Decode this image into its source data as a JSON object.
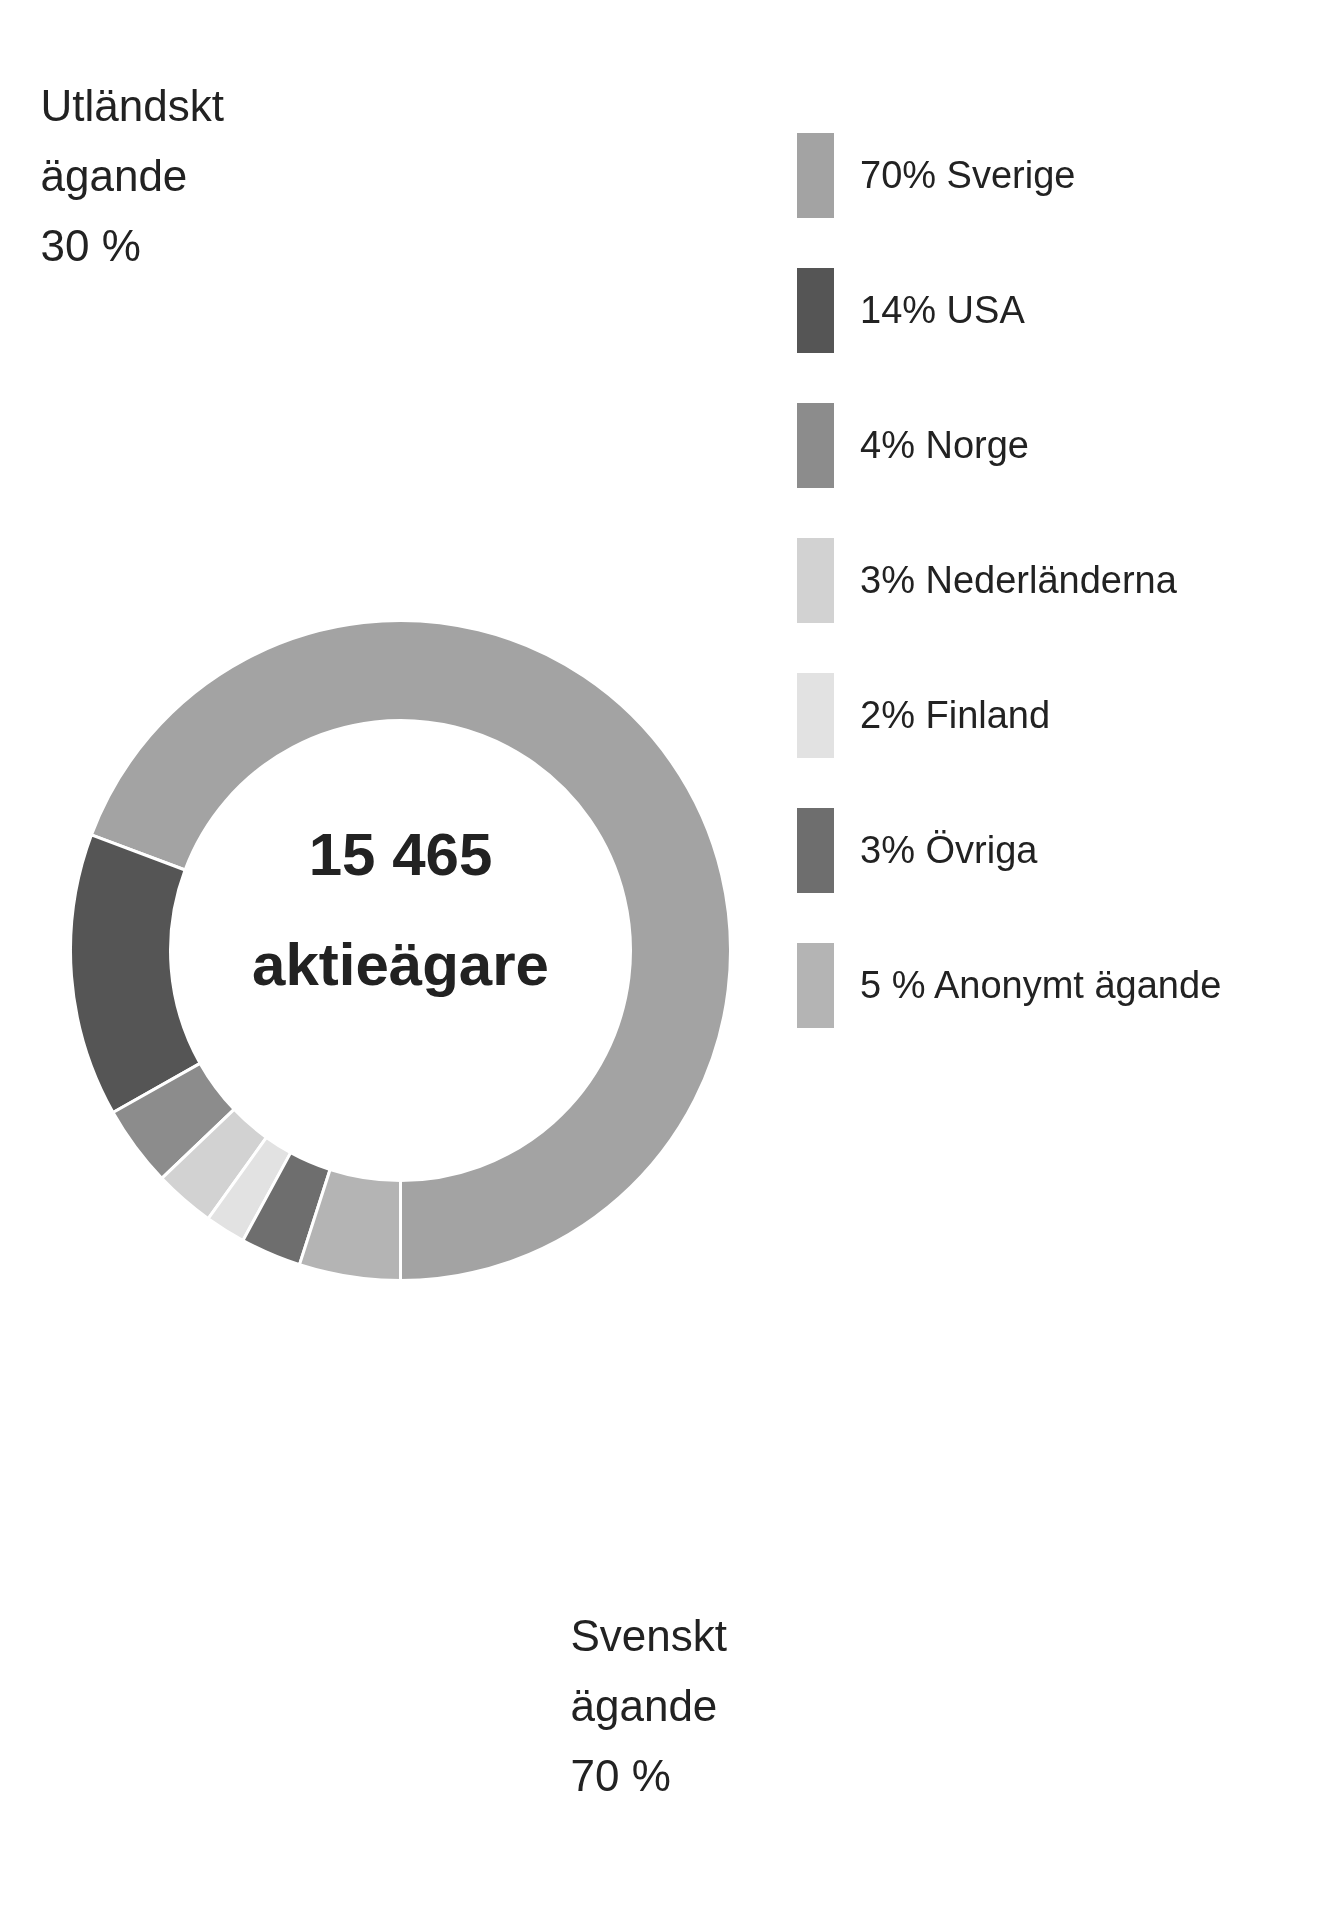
{
  "chart_data": {
    "type": "donut",
    "categories": [
      "70% Sverige",
      "14% USA",
      "4% Norge",
      "3% Nederländerna",
      "2% Finland",
      "3% Övriga",
      "5 % Anonymt ägande"
    ],
    "values": [
      70,
      14,
      4,
      3,
      2,
      3,
      5
    ],
    "colors": [
      "#a3a3a3",
      "#555555",
      "#8c8c8c",
      "#d2d2d2",
      "#e2e2e2",
      "#6e6e6e",
      "#b4b4b4"
    ],
    "legend": "right",
    "annotations": [
      "Utländskt\nägande\n30 %",
      "15 465\naktieägare",
      "Svenskt\nägande\n70 %"
    ]
  }
}
